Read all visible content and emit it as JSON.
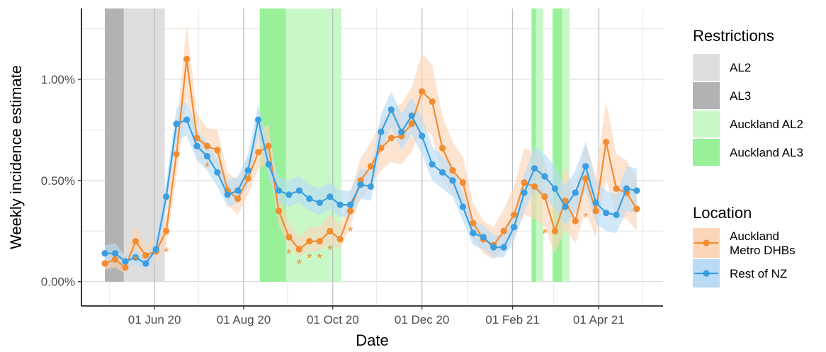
{
  "colors": {
    "auckland": "#f28c30",
    "auckland_band": "#fcd6b8",
    "rest": "#3a9ee0",
    "rest_band": "#b9dbf6",
    "AL2": "#dedede",
    "AL3": "#b2b2b2",
    "AucklandAL2": "#c8f8c8",
    "AucklandAL3": "#98f098"
  },
  "chart_data": {
    "type": "line",
    "xlabel": "Date",
    "ylabel": "Weekly incidence estimate",
    "x_tick_labels": [
      "01 Jun 20",
      "01 Aug 20",
      "01 Oct 20",
      "01 Dec 20",
      "01 Feb 21",
      "01 Apr 21"
    ],
    "x_tick_dates": [
      "2020-06-01",
      "2020-08-01",
      "2020-10-01",
      "2020-12-01",
      "2021-02-01",
      "2021-04-01"
    ],
    "x_range": [
      "2020-04-12",
      "2021-05-15"
    ],
    "ylim": [
      -0.12,
      1.35
    ],
    "y_unit": "%",
    "y_ticks": [
      0.0,
      0.5,
      1.0
    ],
    "y_tick_labels": [
      "0.00%",
      "0.50%",
      "1.00%"
    ],
    "grid": true,
    "legend": "right",
    "dates": [
      "2020-04-28",
      "2020-05-05",
      "2020-05-12",
      "2020-05-19",
      "2020-05-26",
      "2020-06-02",
      "2020-06-09",
      "2020-06-16",
      "2020-06-23",
      "2020-06-30",
      "2020-07-07",
      "2020-07-14",
      "2020-07-21",
      "2020-07-28",
      "2020-08-04",
      "2020-08-11",
      "2020-08-18",
      "2020-08-25",
      "2020-09-01",
      "2020-09-08",
      "2020-09-15",
      "2020-09-22",
      "2020-09-29",
      "2020-10-06",
      "2020-10-13",
      "2020-10-20",
      "2020-10-27",
      "2020-11-03",
      "2020-11-10",
      "2020-11-17",
      "2020-11-24",
      "2020-12-01",
      "2020-12-08",
      "2020-12-15",
      "2020-12-22",
      "2020-12-29",
      "2021-01-05",
      "2021-01-12",
      "2021-01-19",
      "2021-01-26",
      "2021-02-02",
      "2021-02-09",
      "2021-02-16",
      "2021-02-23",
      "2021-03-02",
      "2021-03-09",
      "2021-03-16",
      "2021-03-23",
      "2021-03-30",
      "2021-04-06",
      "2021-04-13",
      "2021-04-20",
      "2021-04-27"
    ],
    "series": [
      {
        "name": "Auckland\nMetro DHBs",
        "values": [
          0.09,
          0.11,
          0.07,
          0.2,
          0.13,
          0.15,
          0.25,
          0.63,
          1.1,
          0.71,
          0.67,
          0.65,
          0.45,
          0.41,
          0.51,
          0.64,
          0.67,
          0.35,
          0.22,
          0.16,
          0.2,
          0.2,
          0.25,
          0.21,
          0.35,
          0.5,
          0.57,
          0.66,
          0.71,
          0.72,
          0.78,
          0.94,
          0.89,
          0.66,
          0.55,
          0.49,
          0.29,
          0.21,
          0.18,
          0.25,
          0.33,
          0.49,
          0.47,
          0.42,
          0.25,
          0.4,
          0.3,
          0.51,
          0.35,
          0.69,
          0.46,
          0.44,
          0.36
        ],
        "lower": [
          0.06,
          0.07,
          0.04,
          0.14,
          0.09,
          0.1,
          0.18,
          0.52,
          0.91,
          0.6,
          0.6,
          0.57,
          0.38,
          0.33,
          0.43,
          0.56,
          0.58,
          0.28,
          0.17,
          0.12,
          0.15,
          0.15,
          0.19,
          0.16,
          0.28,
          0.41,
          0.47,
          0.55,
          0.59,
          0.58,
          0.64,
          0.77,
          0.72,
          0.52,
          0.43,
          0.38,
          0.21,
          0.14,
          0.11,
          0.16,
          0.22,
          0.33,
          0.31,
          0.27,
          0.14,
          0.26,
          0.19,
          0.35,
          0.22,
          0.51,
          0.32,
          0.31,
          0.25
        ],
        "upper": [
          0.13,
          0.16,
          0.12,
          0.28,
          0.18,
          0.21,
          0.34,
          0.76,
          1.27,
          0.83,
          0.76,
          0.75,
          0.54,
          0.5,
          0.61,
          0.74,
          0.78,
          0.44,
          0.29,
          0.22,
          0.27,
          0.27,
          0.33,
          0.28,
          0.44,
          0.61,
          0.69,
          0.79,
          0.85,
          0.88,
          0.96,
          1.13,
          1.07,
          0.82,
          0.69,
          0.62,
          0.39,
          0.3,
          0.27,
          0.36,
          0.47,
          0.66,
          0.64,
          0.6,
          0.38,
          0.57,
          0.45,
          0.69,
          0.52,
          0.89,
          0.63,
          0.6,
          0.5
        ],
        "starred_dates": [
          "2020-05-19",
          "2020-06-09",
          "2020-07-07",
          "2020-09-01",
          "2020-09-08",
          "2020-09-15",
          "2020-09-22",
          "2020-09-29",
          "2020-10-13",
          "2021-02-23",
          "2021-03-23"
        ]
      },
      {
        "name": "Rest of NZ",
        "values": [
          0.14,
          0.14,
          0.1,
          0.12,
          0.09,
          0.16,
          0.42,
          0.78,
          0.8,
          0.67,
          0.62,
          0.54,
          0.43,
          0.45,
          0.55,
          0.8,
          0.58,
          0.45,
          0.43,
          0.45,
          0.41,
          0.39,
          0.42,
          0.38,
          0.38,
          0.48,
          0.47,
          0.74,
          0.85,
          0.74,
          0.82,
          0.72,
          0.58,
          0.54,
          0.5,
          0.37,
          0.24,
          0.22,
          0.17,
          0.17,
          0.27,
          0.44,
          0.56,
          0.52,
          0.46,
          0.37,
          0.44,
          0.57,
          0.39,
          0.34,
          0.33,
          0.46,
          0.45
        ],
        "lower": [
          0.1,
          0.1,
          0.07,
          0.09,
          0.06,
          0.12,
          0.36,
          0.7,
          0.72,
          0.6,
          0.55,
          0.47,
          0.37,
          0.39,
          0.48,
          0.72,
          0.51,
          0.39,
          0.37,
          0.39,
          0.35,
          0.33,
          0.36,
          0.32,
          0.32,
          0.41,
          0.4,
          0.65,
          0.76,
          0.65,
          0.73,
          0.63,
          0.5,
          0.46,
          0.42,
          0.3,
          0.18,
          0.16,
          0.12,
          0.12,
          0.2,
          0.35,
          0.45,
          0.41,
          0.36,
          0.28,
          0.34,
          0.45,
          0.29,
          0.25,
          0.24,
          0.35,
          0.34
        ],
        "upper": [
          0.18,
          0.19,
          0.13,
          0.16,
          0.12,
          0.21,
          0.49,
          0.86,
          0.89,
          0.75,
          0.69,
          0.61,
          0.5,
          0.52,
          0.63,
          0.88,
          0.66,
          0.52,
          0.5,
          0.52,
          0.48,
          0.46,
          0.49,
          0.45,
          0.45,
          0.56,
          0.55,
          0.83,
          0.94,
          0.83,
          0.91,
          0.81,
          0.67,
          0.62,
          0.58,
          0.44,
          0.3,
          0.28,
          0.23,
          0.23,
          0.34,
          0.53,
          0.67,
          0.63,
          0.57,
          0.47,
          0.55,
          0.69,
          0.5,
          0.45,
          0.43,
          0.57,
          0.56
        ]
      }
    ],
    "restrictions": [
      {
        "level": "AL3",
        "start": "2020-04-28",
        "end": "2020-05-11"
      },
      {
        "level": "AL2",
        "start": "2020-05-11",
        "end": "2020-06-08"
      },
      {
        "level": "AucklandAL3",
        "start": "2020-08-12",
        "end": "2020-08-30"
      },
      {
        "level": "AucklandAL2",
        "start": "2020-08-30",
        "end": "2020-10-07"
      },
      {
        "level": "AucklandAL3",
        "start": "2021-02-14",
        "end": "2021-02-17"
      },
      {
        "level": "AucklandAL2",
        "start": "2021-02-17",
        "end": "2021-02-22"
      },
      {
        "level": "AucklandAL2",
        "start": "2021-02-28",
        "end": "2021-03-01"
      },
      {
        "level": "AucklandAL3",
        "start": "2021-03-01",
        "end": "2021-03-07"
      },
      {
        "level": "AucklandAL2",
        "start": "2021-03-07",
        "end": "2021-03-12"
      }
    ],
    "legend_restrictions": {
      "title": "Restrictions",
      "items": [
        {
          "key": "AL2",
          "label": "AL2"
        },
        {
          "key": "AL3",
          "label": "AL3"
        },
        {
          "key": "AucklandAL2",
          "label": "Auckland AL2"
        },
        {
          "key": "AucklandAL3",
          "label": "Auckland AL3"
        }
      ]
    },
    "legend_location": {
      "title": "Location",
      "items": [
        {
          "key": "auckland",
          "label": "Auckland\nMetro DHBs"
        },
        {
          "key": "rest",
          "label": "Rest of NZ"
        }
      ]
    },
    "star_symbol": "*"
  }
}
